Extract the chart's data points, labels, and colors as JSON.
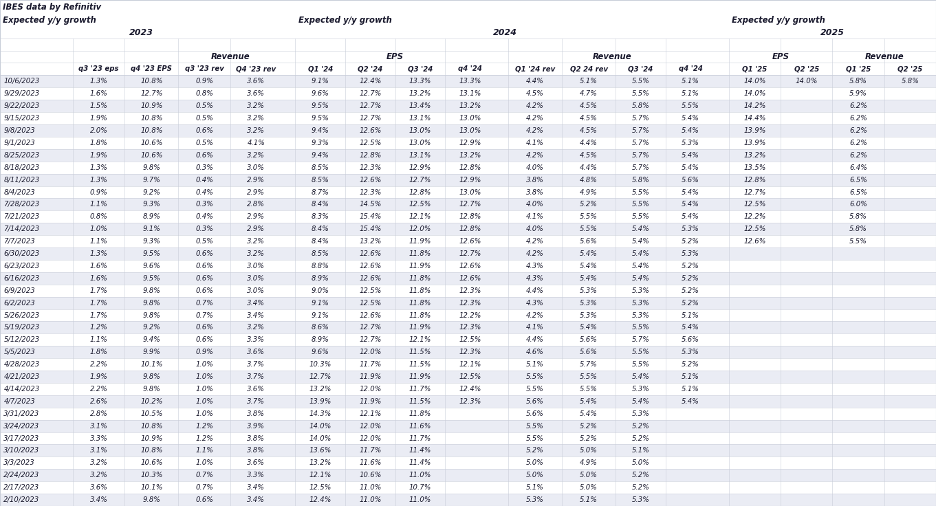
{
  "col_headers": [
    "",
    "q3 '23 eps",
    "q4 '23 EPS",
    "q3 '23 rev",
    "Q4 '23 rev",
    "",
    "Q1 '24",
    "Q2 '24",
    "Q3 '24",
    "q4 '24",
    "",
    "Q1 '24 rev",
    "Q2 24 rev",
    "Q3 '24",
    "q4 '24",
    "",
    "Q1 '25",
    "Q2 '25",
    "Q1 '25",
    "Q2 '25"
  ],
  "rows": [
    [
      "10/6/2023",
      "1.3%",
      "10.8%",
      "0.9%",
      "3.6%",
      "",
      "9.1%",
      "12.4%",
      "13.3%",
      "13.3%",
      "",
      "4.4%",
      "5.1%",
      "5.5%",
      "5.1%",
      "",
      "14.0%",
      "14.0%",
      "5.8%",
      "5.8%"
    ],
    [
      "9/29/2023",
      "1.6%",
      "12.7%",
      "0.8%",
      "3.6%",
      "",
      "9.6%",
      "12.7%",
      "13.2%",
      "13.1%",
      "",
      "4.5%",
      "4.7%",
      "5.5%",
      "5.1%",
      "",
      "14.0%",
      "",
      "5.9%",
      ""
    ],
    [
      "9/22/2023",
      "1.5%",
      "10.9%",
      "0.5%",
      "3.2%",
      "",
      "9.5%",
      "12.7%",
      "13.4%",
      "13.2%",
      "",
      "4.2%",
      "4.5%",
      "5.8%",
      "5.5%",
      "",
      "14.2%",
      "",
      "6.2%",
      ""
    ],
    [
      "9/15/2023",
      "1.9%",
      "10.8%",
      "0.5%",
      "3.2%",
      "",
      "9.5%",
      "12.7%",
      "13.1%",
      "13.0%",
      "",
      "4.2%",
      "4.5%",
      "5.7%",
      "5.4%",
      "",
      "14.4%",
      "",
      "6.2%",
      ""
    ],
    [
      "9/8/2023",
      "2.0%",
      "10.8%",
      "0.6%",
      "3.2%",
      "",
      "9.4%",
      "12.6%",
      "13.0%",
      "13.0%",
      "",
      "4.2%",
      "4.5%",
      "5.7%",
      "5.4%",
      "",
      "13.9%",
      "",
      "6.2%",
      ""
    ],
    [
      "9/1/2023",
      "1.8%",
      "10.6%",
      "0.5%",
      "4.1%",
      "",
      "9.3%",
      "12.5%",
      "13.0%",
      "12.9%",
      "",
      "4.1%",
      "4.4%",
      "5.7%",
      "5.3%",
      "",
      "13.9%",
      "",
      "6.2%",
      ""
    ],
    [
      "8/25/2023",
      "1.9%",
      "10.6%",
      "0.6%",
      "3.2%",
      "",
      "9.4%",
      "12.8%",
      "13.1%",
      "13.2%",
      "",
      "4.2%",
      "4.5%",
      "5.7%",
      "5.4%",
      "",
      "13.2%",
      "",
      "6.2%",
      ""
    ],
    [
      "8/18/2023",
      "1.3%",
      "9.8%",
      "0.3%",
      "3.0%",
      "",
      "8.5%",
      "12.3%",
      "12.9%",
      "12.8%",
      "",
      "4.0%",
      "4.4%",
      "5.7%",
      "5.4%",
      "",
      "13.5%",
      "",
      "6.4%",
      ""
    ],
    [
      "8/11/2023",
      "1.3%",
      "9.7%",
      "0.4%",
      "2.9%",
      "",
      "8.5%",
      "12.6%",
      "12.7%",
      "12.9%",
      "",
      "3.8%",
      "4.8%",
      "5.8%",
      "5.6%",
      "",
      "12.8%",
      "",
      "6.5%",
      ""
    ],
    [
      "8/4/2023",
      "0.9%",
      "9.2%",
      "0.4%",
      "2.9%",
      "",
      "8.7%",
      "12.3%",
      "12.8%",
      "13.0%",
      "",
      "3.8%",
      "4.9%",
      "5.5%",
      "5.4%",
      "",
      "12.7%",
      "",
      "6.5%",
      ""
    ],
    [
      "7/28/2023",
      "1.1%",
      "9.3%",
      "0.3%",
      "2.8%",
      "",
      "8.4%",
      "14.5%",
      "12.5%",
      "12.7%",
      "",
      "4.0%",
      "5.2%",
      "5.5%",
      "5.4%",
      "",
      "12.5%",
      "",
      "6.0%",
      ""
    ],
    [
      "7/21/2023",
      "0.8%",
      "8.9%",
      "0.4%",
      "2.9%",
      "",
      "8.3%",
      "15.4%",
      "12.1%",
      "12.8%",
      "",
      "4.1%",
      "5.5%",
      "5.5%",
      "5.4%",
      "",
      "12.2%",
      "",
      "5.8%",
      ""
    ],
    [
      "7/14/2023",
      "1.0%",
      "9.1%",
      "0.3%",
      "2.9%",
      "",
      "8.4%",
      "15.4%",
      "12.0%",
      "12.8%",
      "",
      "4.0%",
      "5.5%",
      "5.4%",
      "5.3%",
      "",
      "12.5%",
      "",
      "5.8%",
      ""
    ],
    [
      "7/7/2023",
      "1.1%",
      "9.3%",
      "0.5%",
      "3.2%",
      "",
      "8.4%",
      "13.2%",
      "11.9%",
      "12.6%",
      "",
      "4.2%",
      "5.6%",
      "5.4%",
      "5.2%",
      "",
      "12.6%",
      "",
      "5.5%",
      ""
    ],
    [
      "6/30/2023",
      "1.3%",
      "9.5%",
      "0.6%",
      "3.2%",
      "",
      "8.5%",
      "12.6%",
      "11.8%",
      "12.7%",
      "",
      "4.2%",
      "5.4%",
      "5.4%",
      "5.3%",
      "",
      "",
      "",
      "",
      ""
    ],
    [
      "6/23/2023",
      "1.6%",
      "9.6%",
      "0.6%",
      "3.0%",
      "",
      "8.8%",
      "12.6%",
      "11.9%",
      "12.6%",
      "",
      "4.3%",
      "5.4%",
      "5.4%",
      "5.2%",
      "",
      "",
      "",
      "",
      ""
    ],
    [
      "6/16/2023",
      "1.6%",
      "9.5%",
      "0.6%",
      "3.0%",
      "",
      "8.9%",
      "12.6%",
      "11.8%",
      "12.6%",
      "",
      "4.3%",
      "5.4%",
      "5.4%",
      "5.2%",
      "",
      "",
      "",
      "",
      ""
    ],
    [
      "6/9/2023",
      "1.7%",
      "9.8%",
      "0.6%",
      "3.0%",
      "",
      "9.0%",
      "12.5%",
      "11.8%",
      "12.3%",
      "",
      "4.4%",
      "5.3%",
      "5.3%",
      "5.2%",
      "",
      "",
      "",
      "",
      ""
    ],
    [
      "6/2/2023",
      "1.7%",
      "9.8%",
      "0.7%",
      "3.4%",
      "",
      "9.1%",
      "12.5%",
      "11.8%",
      "12.3%",
      "",
      "4.3%",
      "5.3%",
      "5.3%",
      "5.2%",
      "",
      "",
      "",
      "",
      ""
    ],
    [
      "5/26/2023",
      "1.7%",
      "9.8%",
      "0.7%",
      "3.4%",
      "",
      "9.1%",
      "12.6%",
      "11.8%",
      "12.2%",
      "",
      "4.2%",
      "5.3%",
      "5.3%",
      "5.1%",
      "",
      "",
      "",
      "",
      ""
    ],
    [
      "5/19/2023",
      "1.2%",
      "9.2%",
      "0.6%",
      "3.2%",
      "",
      "8.6%",
      "12.7%",
      "11.9%",
      "12.3%",
      "",
      "4.1%",
      "5.4%",
      "5.5%",
      "5.4%",
      "",
      "",
      "",
      "",
      ""
    ],
    [
      "5/12/2023",
      "1.1%",
      "9.4%",
      "0.6%",
      "3.3%",
      "",
      "8.9%",
      "12.7%",
      "12.1%",
      "12.5%",
      "",
      "4.4%",
      "5.6%",
      "5.7%",
      "5.6%",
      "",
      "",
      "",
      "",
      ""
    ],
    [
      "5/5/2023",
      "1.8%",
      "9.9%",
      "0.9%",
      "3.6%",
      "",
      "9.6%",
      "12.0%",
      "11.5%",
      "12.3%",
      "",
      "4.6%",
      "5.6%",
      "5.5%",
      "5.3%",
      "",
      "",
      "",
      "",
      ""
    ],
    [
      "4/28/2023",
      "2.2%",
      "10.1%",
      "1.0%",
      "3.7%",
      "",
      "10.3%",
      "11.7%",
      "11.5%",
      "12.1%",
      "",
      "5.1%",
      "5.7%",
      "5.5%",
      "5.2%",
      "",
      "",
      "",
      "",
      ""
    ],
    [
      "4/21/2023",
      "1.9%",
      "9.8%",
      "1.0%",
      "3.7%",
      "",
      "12.7%",
      "11.9%",
      "11.9%",
      "12.5%",
      "",
      "5.5%",
      "5.5%",
      "5.4%",
      "5.1%",
      "",
      "",
      "",
      "",
      ""
    ],
    [
      "4/14/2023",
      "2.2%",
      "9.8%",
      "1.0%",
      "3.6%",
      "",
      "13.2%",
      "12.0%",
      "11.7%",
      "12.4%",
      "",
      "5.5%",
      "5.5%",
      "5.3%",
      "5.1%",
      "",
      "",
      "",
      "",
      ""
    ],
    [
      "4/7/2023",
      "2.6%",
      "10.2%",
      "1.0%",
      "3.7%",
      "",
      "13.9%",
      "11.9%",
      "11.5%",
      "12.3%",
      "",
      "5.6%",
      "5.4%",
      "5.4%",
      "5.4%",
      "",
      "",
      "",
      "",
      ""
    ],
    [
      "3/31/2023",
      "2.8%",
      "10.5%",
      "1.0%",
      "3.8%",
      "",
      "14.3%",
      "12.1%",
      "11.8%",
      "",
      "",
      "5.6%",
      "5.4%",
      "5.3%",
      "",
      "",
      "",
      "",
      "",
      ""
    ],
    [
      "3/24/2023",
      "3.1%",
      "10.8%",
      "1.2%",
      "3.9%",
      "",
      "14.0%",
      "12.0%",
      "11.6%",
      "",
      "",
      "5.5%",
      "5.2%",
      "5.2%",
      "",
      "",
      "",
      "",
      "",
      ""
    ],
    [
      "3/17/2023",
      "3.3%",
      "10.9%",
      "1.2%",
      "3.8%",
      "",
      "14.0%",
      "12.0%",
      "11.7%",
      "",
      "",
      "5.5%",
      "5.2%",
      "5.2%",
      "",
      "",
      "",
      "",
      "",
      ""
    ],
    [
      "3/10/2023",
      "3.1%",
      "10.8%",
      "1.1%",
      "3.8%",
      "",
      "13.6%",
      "11.7%",
      "11.4%",
      "",
      "",
      "5.2%",
      "5.0%",
      "5.1%",
      "",
      "",
      "",
      "",
      "",
      ""
    ],
    [
      "3/3/2023",
      "3.2%",
      "10.6%",
      "1.0%",
      "3.6%",
      "",
      "13.2%",
      "11.6%",
      "11.4%",
      "",
      "",
      "5.0%",
      "4.9%",
      "5.0%",
      "",
      "",
      "",
      "",
      "",
      ""
    ],
    [
      "2/24/2023",
      "3.2%",
      "10.3%",
      "0.7%",
      "3.3%",
      "",
      "12.1%",
      "10.6%",
      "11.0%",
      "",
      "",
      "5.0%",
      "5.0%",
      "5.2%",
      "",
      "",
      "",
      "",
      "",
      ""
    ],
    [
      "2/17/2023",
      "3.6%",
      "10.1%",
      "0.7%",
      "3.4%",
      "",
      "12.5%",
      "11.0%",
      "10.7%",
      "",
      "",
      "5.1%",
      "5.0%",
      "5.2%",
      "",
      "",
      "",
      "",
      "",
      ""
    ],
    [
      "2/10/2023",
      "3.4%",
      "9.8%",
      "0.6%",
      "3.4%",
      "",
      "12.4%",
      "11.0%",
      "11.0%",
      "",
      "",
      "5.3%",
      "5.1%",
      "5.3%",
      "",
      "",
      "",
      "",
      "",
      ""
    ]
  ],
  "text_color": "#1a1a2e",
  "line_color": "#c8cdd8",
  "row_color_even": "#eaecf4",
  "row_color_odd": "#ffffff",
  "header_color": "#ffffff"
}
